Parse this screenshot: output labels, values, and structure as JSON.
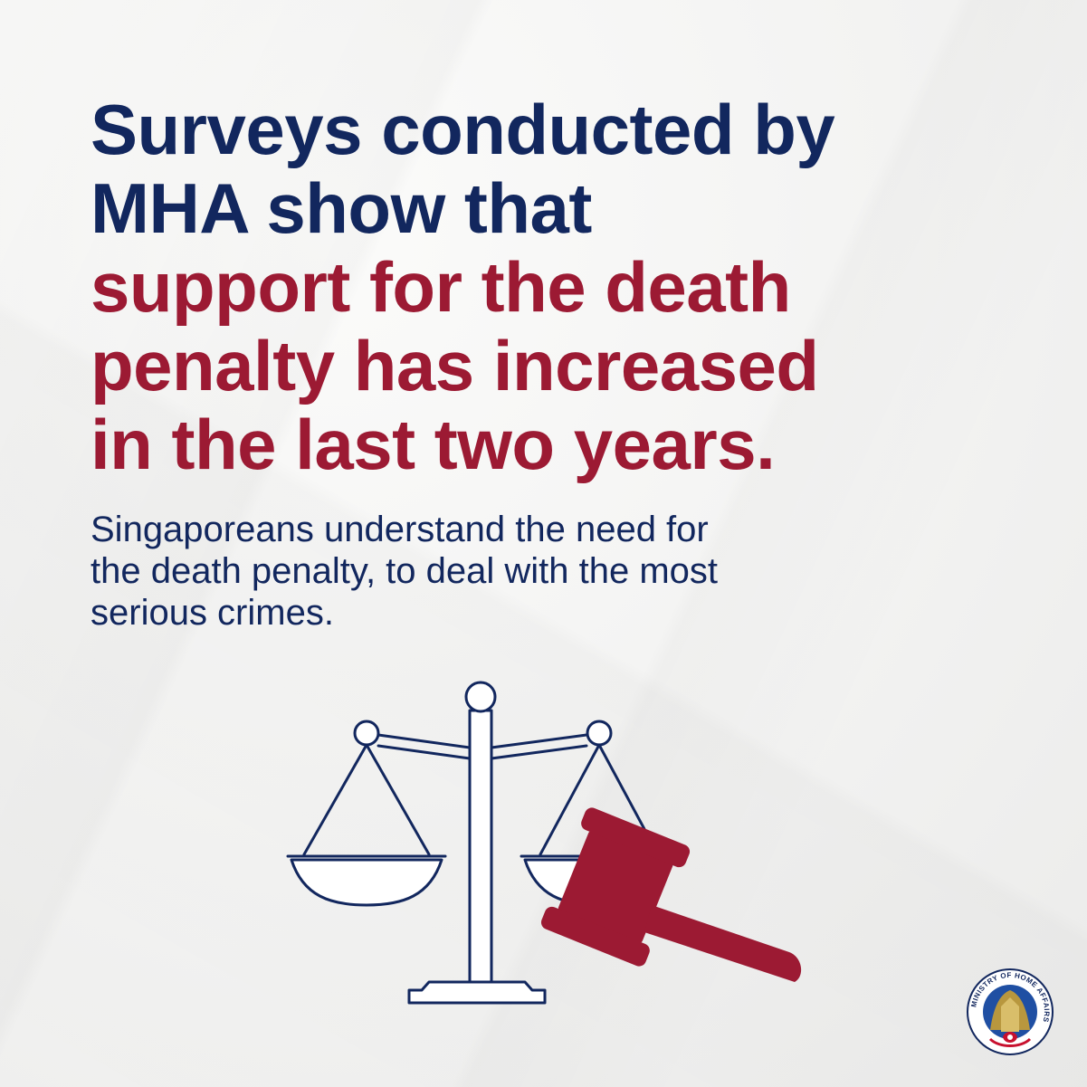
{
  "headline": {
    "line1": "Surveys conducted by",
    "line2": "MHA show that",
    "line3": "support for the death",
    "line4": "penalty has increased",
    "line5": "in the last two years."
  },
  "subtext": {
    "line1": "Singaporeans understand the need for",
    "line2": "the death penalty, to deal with the most",
    "line3": "serious crimes."
  },
  "logo": {
    "text": "MINISTRY OF HOME AFFAIRS"
  },
  "colors": {
    "navy": "#12275e",
    "red": "#9c1a33",
    "background": "#f4f4f3"
  },
  "icons": [
    "scales-of-justice-icon",
    "gavel-icon",
    "mha-crest-logo"
  ]
}
